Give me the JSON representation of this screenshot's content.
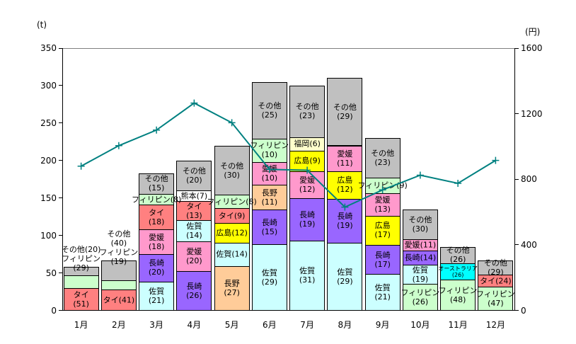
{
  "chart_data": {
    "type": "bar",
    "subtype": "stacked_bar_with_line",
    "title": "",
    "categories": [
      "1月",
      "2月",
      "3月",
      "4月",
      "5月",
      "6月",
      "7月",
      "8月",
      "9月",
      "10月",
      "11月",
      "12月"
    ],
    "left_axis": {
      "unit": "(t)",
      "min": 0,
      "max": 350,
      "tick_step": 50,
      "ticks": [
        0,
        50,
        100,
        150,
        200,
        250,
        300,
        350
      ]
    },
    "right_axis": {
      "unit": "(円)",
      "min": 0,
      "max": 1600,
      "tick_step": 400,
      "ticks": [
        0,
        400,
        800,
        1200,
        1600
      ]
    },
    "line_series": {
      "name": "price",
      "axis": "right",
      "values": [
        880,
        1005,
        1100,
        1265,
        1145,
        860,
        855,
        630,
        735,
        825,
        775,
        915
      ]
    },
    "months": [
      {
        "label": "1月",
        "total_t": 58,
        "price_yen": 880,
        "segments": [
          {
            "name": "タイ",
            "share_pct": 51,
            "wrap": true
          },
          {
            "name": "フィリピン",
            "share_pct": 29,
            "outside": true
          },
          {
            "name": "その他",
            "share_pct": 20,
            "outside": true
          }
        ],
        "outside_label_lines": [
          "その他(20)",
          "フィリピン",
          "(29)"
        ]
      },
      {
        "label": "2月",
        "total_t": 67,
        "price_yen": 1005,
        "segments": [
          {
            "name": "タイ",
            "share_pct": 41,
            "wrap": false
          },
          {
            "name": "フィリピン",
            "share_pct": 19,
            "outside": true
          },
          {
            "name": "その他",
            "share_pct": 40,
            "outside": true
          }
        ],
        "outside_label_lines": [
          "その他",
          "(40)",
          "フィリピン",
          "(19)"
        ]
      },
      {
        "label": "3月",
        "total_t": 183,
        "price_yen": 1100,
        "segments": [
          {
            "name": "佐賀",
            "share_pct": 21,
            "wrap": true
          },
          {
            "name": "長崎",
            "share_pct": 20,
            "wrap": true
          },
          {
            "name": "愛媛",
            "share_pct": 18,
            "wrap": true
          },
          {
            "name": "タイ",
            "share_pct": 18,
            "wrap": true
          },
          {
            "name": "フィリピン",
            "share_pct": 8,
            "wrap": false
          },
          {
            "name": "その他",
            "share_pct": 15,
            "wrap": true
          }
        ]
      },
      {
        "label": "4月",
        "total_t": 200,
        "price_yen": 1265,
        "segments": [
          {
            "name": "長崎",
            "share_pct": 26,
            "wrap": true
          },
          {
            "name": "愛媛",
            "share_pct": 20,
            "wrap": true
          },
          {
            "name": "佐賀",
            "share_pct": 14,
            "wrap": true
          },
          {
            "name": "タイ",
            "share_pct": 13,
            "wrap": true
          },
          {
            "name": "熊本",
            "share_pct": 7,
            "wrap": false
          },
          {
            "name": "その他",
            "share_pct": 20,
            "wrap": true
          }
        ]
      },
      {
        "label": "5月",
        "total_t": 220,
        "price_yen": 1145,
        "segments": [
          {
            "name": "長野",
            "share_pct": 27,
            "wrap": true
          },
          {
            "name": "佐賀",
            "share_pct": 14,
            "wrap": false
          },
          {
            "name": "広島",
            "share_pct": 12,
            "wrap": false
          },
          {
            "name": "タイ",
            "share_pct": 9,
            "wrap": false
          },
          {
            "name": "フィリピン",
            "share_pct": 8,
            "wrap": false
          },
          {
            "name": "その他",
            "share_pct": 30,
            "wrap": true
          }
        ]
      },
      {
        "label": "6月",
        "total_t": 305,
        "price_yen": 860,
        "segments": [
          {
            "name": "佐賀",
            "share_pct": 29,
            "wrap": true
          },
          {
            "name": "長崎",
            "share_pct": 15,
            "wrap": true
          },
          {
            "name": "長野",
            "share_pct": 11,
            "wrap": true
          },
          {
            "name": "愛媛",
            "share_pct": 10,
            "wrap": true
          },
          {
            "name": "フィリピン",
            "share_pct": 10,
            "wrap": true
          },
          {
            "name": "その他",
            "share_pct": 25,
            "wrap": true
          }
        ]
      },
      {
        "label": "7月",
        "total_t": 300,
        "price_yen": 855,
        "segments": [
          {
            "name": "佐賀",
            "share_pct": 31,
            "wrap": true
          },
          {
            "name": "長崎",
            "share_pct": 19,
            "wrap": true
          },
          {
            "name": "愛媛",
            "share_pct": 12,
            "wrap": true
          },
          {
            "name": "広島",
            "share_pct": 9,
            "wrap": false
          },
          {
            "name": "福岡",
            "share_pct": 6,
            "wrap": false
          },
          {
            "name": "その他",
            "share_pct": 23,
            "wrap": true
          }
        ]
      },
      {
        "label": "8月",
        "total_t": 310,
        "price_yen": 630,
        "segments": [
          {
            "name": "佐賀",
            "share_pct": 29,
            "wrap": true
          },
          {
            "name": "長崎",
            "share_pct": 19,
            "wrap": true
          },
          {
            "name": "広島",
            "share_pct": 12,
            "wrap": true
          },
          {
            "name": "愛媛",
            "share_pct": 11,
            "wrap": true
          },
          {
            "name": "その他",
            "share_pct": 29,
            "wrap": true
          }
        ]
      },
      {
        "label": "9月",
        "total_t": 230,
        "price_yen": 735,
        "segments": [
          {
            "name": "佐賀",
            "share_pct": 21,
            "wrap": true
          },
          {
            "name": "長崎",
            "share_pct": 17,
            "wrap": true
          },
          {
            "name": "広島",
            "share_pct": 17,
            "wrap": true
          },
          {
            "name": "愛媛",
            "share_pct": 13,
            "wrap": true
          },
          {
            "name": "フィリピン",
            "share_pct": 9,
            "wrap": false
          },
          {
            "name": "その他",
            "share_pct": 23,
            "wrap": true
          }
        ]
      },
      {
        "label": "10月",
        "total_t": 135,
        "price_yen": 825,
        "segments": [
          {
            "name": "フィリピン",
            "share_pct": 26,
            "wrap": true
          },
          {
            "name": "佐賀",
            "share_pct": 19,
            "wrap": true
          },
          {
            "name": "長崎",
            "share_pct": 14,
            "wrap": false
          },
          {
            "name": "愛媛",
            "share_pct": 11,
            "wrap": false
          },
          {
            "name": "その他",
            "share_pct": 30,
            "wrap": true
          }
        ]
      },
      {
        "label": "11月",
        "total_t": 85,
        "price_yen": 775,
        "segments": [
          {
            "name": "フィリピン",
            "share_pct": 48,
            "wrap": true
          },
          {
            "name": "オーストラリア",
            "share_pct": 26,
            "wrap": true,
            "small_font": true
          },
          {
            "name": "その他",
            "share_pct": 26,
            "wrap": true
          }
        ]
      },
      {
        "label": "12月",
        "total_t": 67,
        "price_yen": 915,
        "segments": [
          {
            "name": "フィリピン",
            "share_pct": 47,
            "wrap": true
          },
          {
            "name": "タイ",
            "share_pct": 24,
            "wrap": false
          },
          {
            "name": "その他",
            "share_pct": 29,
            "wrap": true
          }
        ]
      }
    ]
  },
  "colors": {
    "タイ": "#FF8080",
    "フィリピン": "#CCFFCC",
    "その他": "#C0C0C0",
    "佐賀": "#CCFFFF",
    "長崎": "#9966FF",
    "愛媛": "#FF99CC",
    "長野": "#FFCC99",
    "広島": "#FFFF00",
    "熊本": "#FFFFFF",
    "福岡": "#FFFFCC",
    "オーストラリア": "#00FFFF",
    "line": "#008080",
    "border": "#000000",
    "background": "#FFFFFF"
  }
}
